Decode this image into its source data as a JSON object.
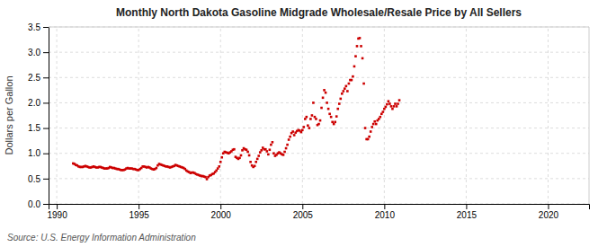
{
  "chart_data": {
    "type": "scatter",
    "title": "Monthly North Dakota Gasoline Midgrade Wholesale/Resale Price by All Sellers",
    "ylabel": "Dollars per Gallon",
    "source": "Source: U.S. Energy Information Administration",
    "color": "#cc0000",
    "marker": "square",
    "grid": true,
    "xlim": [
      1989.5,
      2022.5
    ],
    "ylim": [
      0.0,
      3.5
    ],
    "xticks": [
      1990,
      1995,
      2000,
      2005,
      2010,
      2015,
      2020
    ],
    "yticks": [
      {
        "value": 0.0,
        "label": "0.0"
      },
      0.5,
      {
        "value": 1.0,
        "label": "1.0"
      },
      1.5,
      {
        "value": 2.0,
        "label": "2.0"
      },
      2.5,
      {
        "value": 3.0,
        "label": "3.0"
      },
      3.5
    ],
    "x": [
      1991.0,
      1991.083,
      1991.167,
      1991.25,
      1991.333,
      1991.417,
      1991.5,
      1991.583,
      1991.667,
      1991.75,
      1991.833,
      1991.917,
      1992.0,
      1992.083,
      1992.167,
      1992.25,
      1992.333,
      1992.417,
      1992.5,
      1992.583,
      1992.667,
      1992.75,
      1992.833,
      1992.917,
      1993.0,
      1993.083,
      1993.167,
      1993.25,
      1993.333,
      1993.417,
      1993.5,
      1993.583,
      1993.667,
      1993.75,
      1993.833,
      1993.917,
      1994.0,
      1994.083,
      1994.167,
      1994.25,
      1994.333,
      1994.417,
      1994.5,
      1994.583,
      1994.667,
      1994.75,
      1994.833,
      1994.917,
      1995.0,
      1995.083,
      1995.167,
      1995.25,
      1995.333,
      1995.417,
      1995.5,
      1995.583,
      1995.667,
      1995.75,
      1995.833,
      1995.917,
      1996.0,
      1996.083,
      1996.167,
      1996.25,
      1996.333,
      1996.417,
      1996.5,
      1996.583,
      1996.667,
      1996.75,
      1996.833,
      1996.917,
      1997.0,
      1997.083,
      1997.167,
      1997.25,
      1997.333,
      1997.417,
      1997.5,
      1997.583,
      1997.667,
      1997.75,
      1997.833,
      1997.917,
      1998.0,
      1998.083,
      1998.167,
      1998.25,
      1998.333,
      1998.417,
      1998.5,
      1998.583,
      1998.667,
      1998.75,
      1998.833,
      1998.917,
      1999.0,
      1999.083,
      1999.167,
      1999.25,
      1999.333,
      1999.417,
      1999.5,
      1999.583,
      1999.667,
      1999.75,
      1999.833,
      1999.917,
      2000.0,
      2000.083,
      2000.167,
      2000.25,
      2000.333,
      2000.417,
      2000.5,
      2000.583,
      2000.667,
      2000.75,
      2000.833,
      2000.917,
      2001.0,
      2001.083,
      2001.167,
      2001.25,
      2001.333,
      2001.417,
      2001.5,
      2001.583,
      2001.667,
      2001.75,
      2001.833,
      2001.917,
      2002.0,
      2002.083,
      2002.167,
      2002.25,
      2002.333,
      2002.417,
      2002.5,
      2002.583,
      2002.667,
      2002.75,
      2002.833,
      2002.917,
      2003.0,
      2003.083,
      2003.167,
      2003.25,
      2003.333,
      2003.417,
      2003.5,
      2003.583,
      2003.667,
      2003.75,
      2003.833,
      2003.917,
      2004.0,
      2004.083,
      2004.167,
      2004.25,
      2004.333,
      2004.417,
      2004.5,
      2004.583,
      2004.667,
      2004.75,
      2004.833,
      2004.917,
      2005.0,
      2005.083,
      2005.167,
      2005.25,
      2005.333,
      2005.417,
      2005.5,
      2005.583,
      2005.667,
      2005.75,
      2005.833,
      2005.917,
      2006.0,
      2006.083,
      2006.167,
      2006.25,
      2006.333,
      2006.417,
      2006.5,
      2006.583,
      2006.667,
      2006.75,
      2006.833,
      2006.917,
      2007.0,
      2007.083,
      2007.167,
      2007.25,
      2007.333,
      2007.417,
      2007.5,
      2007.583,
      2007.667,
      2007.75,
      2007.833,
      2007.917,
      2008.0,
      2008.083,
      2008.167,
      2008.25,
      2008.333,
      2008.417,
      2008.5,
      2008.583,
      2008.667,
      2008.75,
      2008.833,
      2008.917,
      2009.0,
      2009.083,
      2009.167,
      2009.25,
      2009.333,
      2009.417,
      2009.5,
      2009.583,
      2009.667,
      2009.75,
      2009.833,
      2009.917,
      2010.0,
      2010.083,
      2010.167,
      2010.25,
      2010.333,
      2010.417,
      2010.5,
      2010.583,
      2010.667,
      2010.75,
      2010.833,
      2010.917
    ],
    "values": [
      0.8,
      0.79,
      0.77,
      0.76,
      0.74,
      0.73,
      0.73,
      0.73,
      0.74,
      0.75,
      0.74,
      0.73,
      0.72,
      0.72,
      0.73,
      0.74,
      0.73,
      0.72,
      0.72,
      0.73,
      0.73,
      0.72,
      0.71,
      0.7,
      0.7,
      0.7,
      0.71,
      0.73,
      0.72,
      0.71,
      0.71,
      0.7,
      0.69,
      0.69,
      0.68,
      0.67,
      0.67,
      0.67,
      0.68,
      0.7,
      0.71,
      0.7,
      0.7,
      0.7,
      0.69,
      0.69,
      0.68,
      0.67,
      0.67,
      0.69,
      0.71,
      0.74,
      0.74,
      0.73,
      0.72,
      0.73,
      0.72,
      0.7,
      0.69,
      0.68,
      0.69,
      0.71,
      0.76,
      0.79,
      0.78,
      0.77,
      0.76,
      0.75,
      0.74,
      0.74,
      0.73,
      0.72,
      0.73,
      0.74,
      0.75,
      0.77,
      0.76,
      0.75,
      0.74,
      0.73,
      0.72,
      0.71,
      0.69,
      0.66,
      0.64,
      0.63,
      0.61,
      0.62,
      0.62,
      0.61,
      0.59,
      0.58,
      0.57,
      0.56,
      0.55,
      0.55,
      0.54,
      0.53,
      0.49,
      0.53,
      0.56,
      0.57,
      0.59,
      0.6,
      0.63,
      0.66,
      0.7,
      0.74,
      0.83,
      0.92,
      1.0,
      1.03,
      1.02,
      1.01,
      1.0,
      1.02,
      1.04,
      1.07,
      1.08,
      0.93,
      0.91,
      0.89,
      0.91,
      0.96,
      1.06,
      1.1,
      1.08,
      1.07,
      1.03,
      0.96,
      0.83,
      0.76,
      0.73,
      0.75,
      0.83,
      0.89,
      0.95,
      1.02,
      1.06,
      1.11,
      1.08,
      1.08,
      1.04,
      0.98,
      1.07,
      1.17,
      1.22,
      1.0,
      0.95,
      0.97,
      1.0,
      1.02,
      1.0,
      0.98,
      0.97,
      1.03,
      1.1,
      1.17,
      1.27,
      1.33,
      1.4,
      1.43,
      1.36,
      1.41,
      1.44,
      1.46,
      1.45,
      1.42,
      1.46,
      1.52,
      1.68,
      1.72,
      1.55,
      1.5,
      1.68,
      1.75,
      2.0,
      1.72,
      1.68,
      1.56,
      1.58,
      1.65,
      1.9,
      2.1,
      2.25,
      2.2,
      2.0,
      1.88,
      1.78,
      1.72,
      1.62,
      1.58,
      1.62,
      1.73,
      1.88,
      1.98,
      2.08,
      2.18,
      2.23,
      2.28,
      2.33,
      2.23,
      2.38,
      2.45,
      2.45,
      2.52,
      2.72,
      2.92,
      3.12,
      3.27,
      3.28,
      3.12,
      2.88,
      2.38,
      1.5,
      1.28,
      1.28,
      1.33,
      1.43,
      1.52,
      1.58,
      1.63,
      1.58,
      1.65,
      1.68,
      1.72,
      1.78,
      1.82,
      1.88,
      1.92,
      1.97,
      2.03,
      1.98,
      1.93,
      1.88,
      1.93,
      1.98,
      1.93,
      1.98,
      2.05
    ]
  }
}
